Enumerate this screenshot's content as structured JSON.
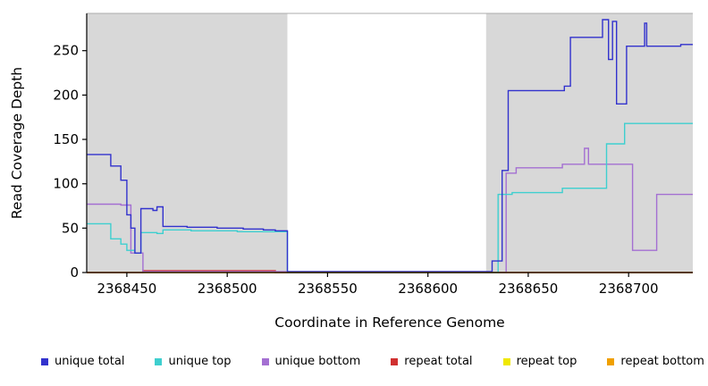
{
  "chart_data": {
    "type": "line",
    "step": true,
    "title": "",
    "xlabel": "Coordinate in Reference Genome",
    "ylabel": "Read Coverage Depth",
    "xlim": [
      2368430,
      2368732
    ],
    "ylim": [
      0,
      292
    ],
    "x_ticks": [
      2368450,
      2368500,
      2368550,
      2368600,
      2368650,
      2368700
    ],
    "y_ticks": [
      0,
      50,
      100,
      150,
      200,
      250
    ],
    "grid": false,
    "legend_position": "bottom",
    "plot_background": "#ffffff",
    "shaded_regions": [
      {
        "x0": 2368430,
        "x1": 2368530,
        "color": "#d8d8d8"
      },
      {
        "x0": 2368629,
        "x1": 2368732,
        "color": "#d8d8d8"
      }
    ],
    "series": [
      {
        "name": "unique total",
        "color": "#3232cd",
        "points": [
          [
            2368430,
            133
          ],
          [
            2368442,
            120
          ],
          [
            2368447,
            104
          ],
          [
            2368450,
            65
          ],
          [
            2368452,
            50
          ],
          [
            2368454,
            22
          ],
          [
            2368457,
            72
          ],
          [
            2368463,
            70
          ],
          [
            2368465,
            74
          ],
          [
            2368468,
            52
          ],
          [
            2368480,
            51
          ],
          [
            2368495,
            50
          ],
          [
            2368508,
            49
          ],
          [
            2368518,
            48
          ],
          [
            2368524,
            47
          ],
          [
            2368530,
            1
          ],
          [
            2368632,
            13
          ],
          [
            2368637,
            115
          ],
          [
            2368640,
            205
          ],
          [
            2368668,
            210
          ],
          [
            2368671,
            265
          ],
          [
            2368687,
            285
          ],
          [
            2368690,
            240
          ],
          [
            2368692,
            283
          ],
          [
            2368694,
            190
          ],
          [
            2368699,
            255
          ],
          [
            2368708,
            281
          ],
          [
            2368709,
            255
          ],
          [
            2368726,
            257
          ],
          [
            2368732,
            257
          ]
        ]
      },
      {
        "name": "unique top",
        "color": "#3ecfcf",
        "points": [
          [
            2368430,
            55
          ],
          [
            2368442,
            38
          ],
          [
            2368447,
            32
          ],
          [
            2368450,
            25
          ],
          [
            2368454,
            22
          ],
          [
            2368457,
            45
          ],
          [
            2368465,
            44
          ],
          [
            2368468,
            48
          ],
          [
            2368482,
            47
          ],
          [
            2368505,
            46
          ],
          [
            2368530,
            0
          ],
          [
            2368635,
            88
          ],
          [
            2368642,
            90
          ],
          [
            2368667,
            95
          ],
          [
            2368689,
            145
          ],
          [
            2368698,
            168
          ],
          [
            2368732,
            168
          ]
        ]
      },
      {
        "name": "unique bottom",
        "color": "#a46fd2",
        "points": [
          [
            2368430,
            77
          ],
          [
            2368447,
            76
          ],
          [
            2368452,
            22
          ],
          [
            2368458,
            1
          ],
          [
            2368530,
            0
          ],
          [
            2368639,
            112
          ],
          [
            2368644,
            118
          ],
          [
            2368667,
            122
          ],
          [
            2368678,
            140
          ],
          [
            2368680,
            122
          ],
          [
            2368702,
            25
          ],
          [
            2368714,
            88
          ],
          [
            2368732,
            88
          ]
        ]
      },
      {
        "name": "repeat total",
        "color": "#d03030",
        "points": [
          [
            2368430,
            0
          ],
          [
            2368458,
            2
          ],
          [
            2368524,
            0
          ],
          [
            2368732,
            0
          ]
        ]
      },
      {
        "name": "repeat top",
        "color": "#f0e800",
        "points": [
          [
            2368430,
            0
          ],
          [
            2368732,
            0
          ]
        ]
      },
      {
        "name": "repeat bottom",
        "color": "#f0a000",
        "points": [
          [
            2368430,
            0
          ],
          [
            2368732,
            0
          ]
        ]
      }
    ]
  }
}
